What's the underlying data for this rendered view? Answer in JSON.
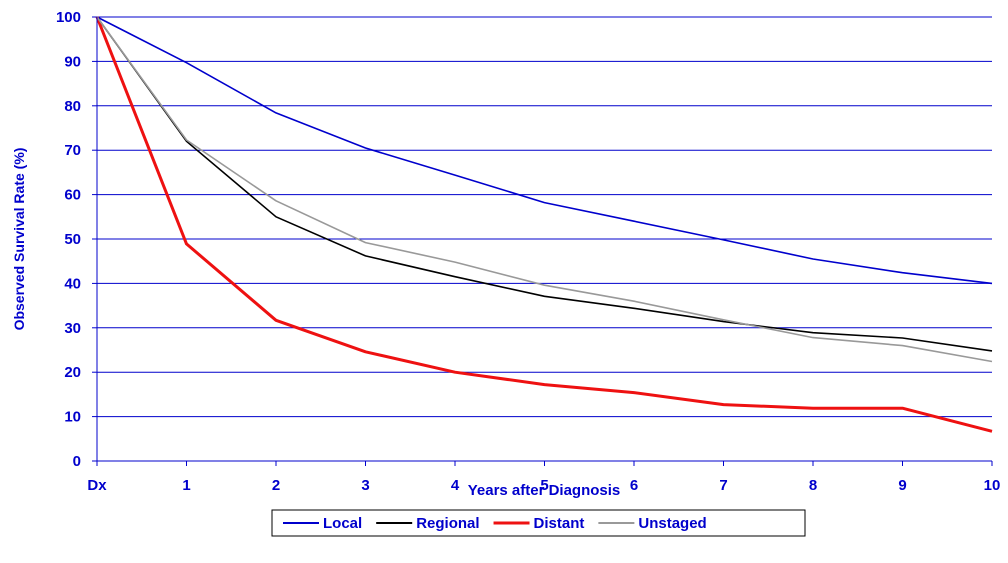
{
  "chart_data": {
    "type": "line",
    "title": "",
    "xlabel": "Years after Diagnosis",
    "ylabel": "Observed Survival Rate (%)",
    "categories": [
      "Dx",
      "1",
      "2",
      "3",
      "4",
      "5",
      "6",
      "7",
      "8",
      "9",
      "10"
    ],
    "ylim": [
      0,
      100
    ],
    "yticks": [
      0,
      10,
      20,
      30,
      40,
      50,
      60,
      70,
      80,
      90,
      100
    ],
    "grid": true,
    "legend_position": "bottom",
    "series": [
      {
        "name": "Local",
        "color": "#0000cc",
        "values": [
          100,
          89.7,
          78.4,
          70.5,
          64.4,
          58.2,
          54.0,
          49.8,
          45.5,
          42.4,
          40.0
        ]
      },
      {
        "name": "Regional",
        "color": "#000000",
        "values": [
          100,
          72.0,
          55.0,
          46.2,
          41.5,
          37.1,
          34.4,
          31.4,
          28.9,
          27.7,
          24.8
        ]
      },
      {
        "name": "Distant",
        "color": "#ee1111",
        "values": [
          100,
          48.9,
          31.7,
          24.6,
          20.0,
          17.2,
          15.4,
          12.7,
          11.9,
          11.9,
          6.7
        ]
      },
      {
        "name": "Unstaged",
        "color": "#999999",
        "values": [
          100,
          72.3,
          58.6,
          49.2,
          44.8,
          39.6,
          36.0,
          31.8,
          27.8,
          26.0,
          22.4
        ]
      }
    ]
  }
}
